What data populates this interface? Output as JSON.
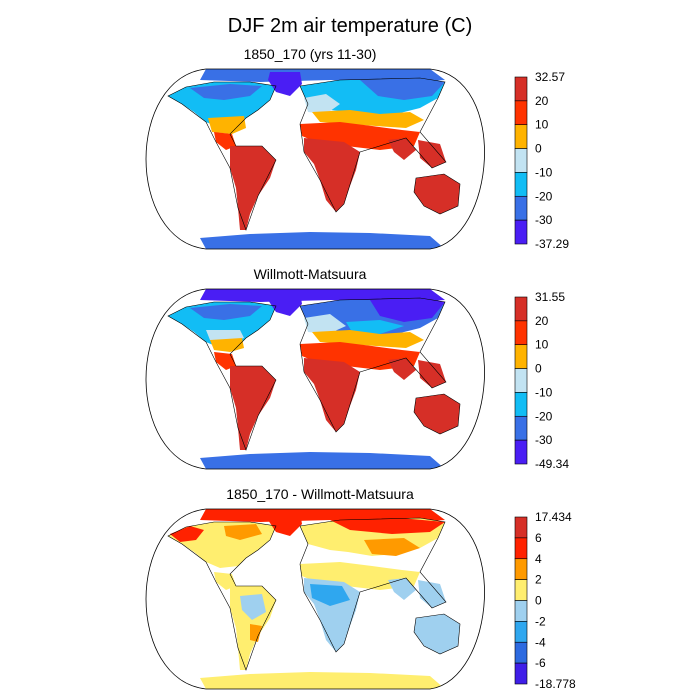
{
  "figure": {
    "title": "DJF 2m air temperature (C)"
  },
  "chart_data": [
    {
      "type": "heatmap",
      "projection": "robinson",
      "title": "1850_170 (yrs 11-30)",
      "colorbar": {
        "labels": [
          "32.57",
          "20",
          "10",
          "0",
          "-10",
          "-20",
          "-30",
          "-37.29"
        ],
        "colors": [
          "#d62f27",
          "#ff3300",
          "#ffb300",
          "#c2e3f2",
          "#12bdf5",
          "#3970e6",
          "#4a1ef4"
        ]
      }
    },
    {
      "type": "heatmap",
      "projection": "robinson",
      "title": "Willmott-Matsuura",
      "colorbar": {
        "labels": [
          "31.55",
          "20",
          "10",
          "0",
          "-10",
          "-20",
          "-30",
          "-49.34"
        ],
        "colors": [
          "#d62f27",
          "#ff3300",
          "#ffb300",
          "#c2e3f2",
          "#12bdf5",
          "#3970e6",
          "#4a1ef4"
        ]
      }
    },
    {
      "type": "heatmap",
      "projection": "robinson",
      "title": "1850_170 - Willmott-Matsuura",
      "colorbar": {
        "labels": [
          "17.434",
          "6",
          "4",
          "2",
          "0",
          "-2",
          "-4",
          "-6",
          "-18.778"
        ],
        "colors": [
          "#d62f27",
          "#ff2200",
          "#ff9a00",
          "#ffee6f",
          "#9fd0ef",
          "#2fa7ef",
          "#2d6ae0",
          "#3f1ee8"
        ]
      }
    }
  ]
}
